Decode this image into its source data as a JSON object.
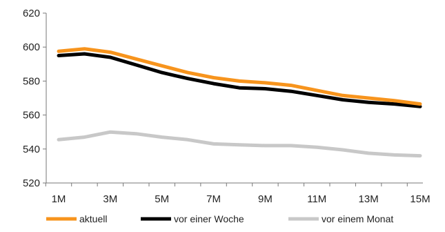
{
  "chart_data": {
    "type": "line",
    "title": "",
    "xlabel": "",
    "ylabel": "",
    "x_categories": [
      "1M",
      "2M",
      "3M",
      "4M",
      "5M",
      "6M",
      "7M",
      "8M",
      "9M",
      "10M",
      "11M",
      "12M",
      "13M",
      "14M",
      "15M"
    ],
    "x_tick_labels": [
      "1M",
      "3M",
      "5M",
      "7M",
      "9M",
      "11M",
      "13M",
      "15M"
    ],
    "ylim": [
      520,
      620
    ],
    "y_ticks": [
      520,
      540,
      560,
      580,
      600,
      620
    ],
    "grid": false,
    "legend_position": "bottom",
    "series": [
      {
        "name": "aktuell",
        "color": "#F7941D",
        "values": [
          597.5,
          599,
          597,
          593,
          589,
          585,
          582,
          580,
          579,
          577.5,
          574.5,
          571.5,
          570,
          568.5,
          566.5
        ]
      },
      {
        "name": "vor einer Woche",
        "color": "#000000",
        "values": [
          595,
          596,
          594,
          589.5,
          585,
          581.5,
          578.5,
          576,
          575.5,
          574,
          571.5,
          569,
          567.5,
          566.5,
          565
        ]
      },
      {
        "name": "vor einem Monat",
        "color": "#C8C8C8",
        "values": [
          545.5,
          547,
          550,
          549,
          547,
          545.5,
          543,
          542.5,
          542,
          542,
          541,
          539.5,
          537.5,
          536.5,
          536
        ]
      }
    ]
  }
}
